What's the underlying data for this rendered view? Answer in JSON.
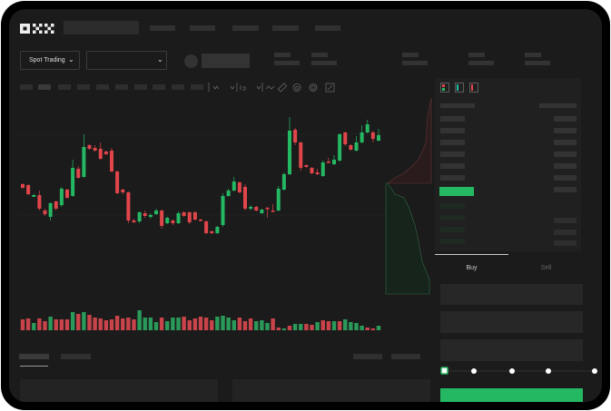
{
  "brand": {
    "logo_text": "OKX"
  },
  "header": {
    "market_selector": "Spot Trading"
  },
  "trade_panel": {
    "tabs": [
      "Buy",
      "Sell"
    ],
    "active_tab": "Buy",
    "slider_value_percent": 0
  },
  "colors": {
    "up": "#25b863",
    "down": "#e0454a",
    "background": "#1b1b1b",
    "panel": "#202020"
  },
  "icons": [
    "chevron-down-icon",
    "order-book-both-icon",
    "order-book-bids-icon",
    "order-book-asks-icon",
    "indicator-icon",
    "drawing-icon",
    "screenshot-icon",
    "settings-icon",
    "fullscreen-icon"
  ],
  "candles": [
    [
      97,
      98,
      92,
      93
    ],
    [
      96,
      97,
      85,
      86
    ],
    [
      83,
      86,
      83,
      85
    ],
    [
      85,
      90,
      68,
      70
    ],
    [
      68,
      70,
      62,
      64
    ],
    [
      61,
      77,
      57,
      76
    ],
    [
      78,
      79,
      68,
      70
    ],
    [
      74,
      94,
      72,
      92
    ],
    [
      91,
      92,
      81,
      82
    ],
    [
      84,
      124,
      83,
      115
    ],
    [
      114,
      117,
      103,
      104
    ],
    [
      105,
      152,
      104,
      138
    ],
    [
      140,
      141,
      135,
      136
    ],
    [
      137,
      140,
      133,
      134
    ],
    [
      136,
      143,
      124,
      125
    ],
    [
      133,
      134,
      129,
      130
    ],
    [
      134,
      137,
      110,
      111
    ],
    [
      111,
      112,
      86,
      87
    ],
    [
      91,
      92,
      86,
      88
    ],
    [
      88,
      89,
      54,
      57
    ],
    [
      57,
      59,
      54,
      55
    ],
    [
      56,
      67,
      54,
      66
    ],
    [
      65,
      68,
      60,
      62
    ],
    [
      61,
      65,
      59,
      63
    ],
    [
      64,
      70,
      63,
      68
    ],
    [
      68,
      69,
      48,
      51
    ],
    [
      54,
      61,
      53,
      60
    ],
    [
      57,
      58,
      52,
      54
    ],
    [
      54,
      67,
      53,
      65
    ],
    [
      66,
      67,
      61,
      62
    ],
    [
      66,
      67,
      53,
      55
    ],
    [
      66,
      67,
      57,
      58
    ],
    [
      58,
      59,
      56,
      57
    ],
    [
      56,
      57,
      42,
      43
    ],
    [
      45,
      46,
      42,
      43
    ],
    [
      43,
      51,
      42,
      50
    ],
    [
      52,
      87,
      50,
      84
    ],
    [
      84,
      92,
      83,
      90
    ],
    [
      90,
      105,
      89,
      100
    ],
    [
      99,
      100,
      87,
      88
    ],
    [
      94,
      97,
      68,
      70
    ],
    [
      70,
      74,
      68,
      72
    ],
    [
      72,
      73,
      67,
      68
    ],
    [
      65,
      70,
      64,
      69
    ],
    [
      71,
      72,
      60,
      70
    ],
    [
      68,
      75,
      66,
      67
    ],
    [
      68,
      95,
      67,
      92
    ],
    [
      91,
      110,
      90,
      108
    ],
    [
      108,
      171,
      107,
      156
    ],
    [
      157,
      159,
      140,
      143
    ],
    [
      143,
      144,
      112,
      115
    ],
    [
      118,
      119,
      115,
      116
    ],
    [
      115,
      116,
      108,
      109
    ],
    [
      110,
      114,
      107,
      108
    ],
    [
      106,
      123,
      105,
      121
    ],
    [
      122,
      126,
      120,
      121
    ],
    [
      119,
      129,
      118,
      124
    ],
    [
      123,
      153,
      122,
      152
    ],
    [
      154,
      155,
      139,
      141
    ],
    [
      140,
      141,
      134,
      135
    ],
    [
      134,
      150,
      133,
      143
    ],
    [
      143,
      162,
      142,
      154
    ],
    [
      154,
      168,
      153,
      163
    ],
    [
      154,
      156,
      143,
      147
    ],
    [
      145,
      158,
      144,
      151
    ]
  ],
  "volumes": [
    [
      12,
      "d"
    ],
    [
      13,
      "d"
    ],
    [
      8,
      "u"
    ],
    [
      13,
      "d"
    ],
    [
      10,
      "d"
    ],
    [
      15,
      "u"
    ],
    [
      12,
      "d"
    ],
    [
      12,
      "d"
    ],
    [
      12,
      "d"
    ],
    [
      20,
      "u"
    ],
    [
      18,
      "d"
    ],
    [
      20,
      "u"
    ],
    [
      17,
      "d"
    ],
    [
      14,
      "d"
    ],
    [
      13,
      "d"
    ],
    [
      11,
      "d"
    ],
    [
      12,
      "d"
    ],
    [
      16,
      "d"
    ],
    [
      13,
      "d"
    ],
    [
      14,
      "d"
    ],
    [
      12,
      "d"
    ],
    [
      22,
      "u"
    ],
    [
      14,
      "u"
    ],
    [
      14,
      "u"
    ],
    [
      9,
      "u"
    ],
    [
      14,
      "d"
    ],
    [
      10,
      "u"
    ],
    [
      14,
      "u"
    ],
    [
      14,
      "u"
    ],
    [
      15,
      "d"
    ],
    [
      11,
      "d"
    ],
    [
      13,
      "d"
    ],
    [
      15,
      "d"
    ],
    [
      14,
      "d"
    ],
    [
      11,
      "d"
    ],
    [
      15,
      "u"
    ],
    [
      16,
      "u"
    ],
    [
      14,
      "u"
    ],
    [
      11,
      "u"
    ],
    [
      14,
      "d"
    ],
    [
      10,
      "d"
    ],
    [
      13,
      "d"
    ],
    [
      10,
      "u"
    ],
    [
      11,
      "u"
    ],
    [
      8,
      "u"
    ],
    [
      13,
      "d"
    ],
    [
      3,
      "d"
    ],
    [
      2,
      "u"
    ],
    [
      5,
      "d"
    ],
    [
      7,
      "u"
    ],
    [
      7,
      "u"
    ],
    [
      7,
      "d"
    ],
    [
      6,
      "d"
    ],
    [
      9,
      "u"
    ],
    [
      11,
      "d"
    ],
    [
      10,
      "d"
    ],
    [
      10,
      "u"
    ],
    [
      10,
      "d"
    ],
    [
      12,
      "u"
    ],
    [
      9,
      "u"
    ],
    [
      8,
      "u"
    ],
    [
      5,
      "u"
    ],
    [
      3,
      "d"
    ],
    [
      2,
      "d"
    ],
    [
      5,
      "u"
    ]
  ]
}
